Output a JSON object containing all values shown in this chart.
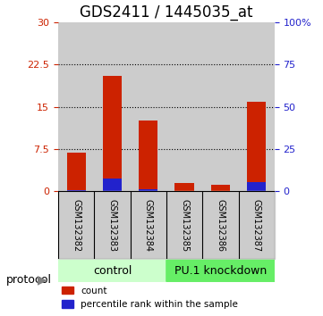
{
  "title": "GDS2411 / 1445035_at",
  "samples": [
    "GSM132382",
    "GSM132383",
    "GSM132384",
    "GSM132385",
    "GSM132386",
    "GSM132387"
  ],
  "count_values": [
    6.8,
    20.5,
    12.5,
    1.4,
    1.1,
    15.8
  ],
  "percentile_values": [
    0.5,
    7.5,
    1.2,
    0.3,
    0.3,
    5.5
  ],
  "groups": [
    {
      "label": "control",
      "indices": [
        0,
        1,
        2
      ],
      "color": "#aaffaa"
    },
    {
      "label": "PU.1 knockdown",
      "indices": [
        3,
        4,
        5
      ],
      "color": "#44ff44"
    }
  ],
  "ylim_left": [
    0,
    30
  ],
  "ylim_right": [
    0,
    100
  ],
  "yticks_left": [
    0,
    7.5,
    15,
    22.5,
    30
  ],
  "yticks_right": [
    0,
    25,
    50,
    75,
    100
  ],
  "yticklabels_right": [
    "0",
    "25",
    "50",
    "75",
    "100%"
  ],
  "bar_color_count": "#cc2200",
  "bar_color_percentile": "#2222cc",
  "bar_width": 0.35,
  "title_fontsize": 12,
  "protocol_label": "protocol",
  "legend_count": "count",
  "legend_percentile": "percentile rank within the sample",
  "background_color": "#ffffff",
  "bar_bg_color": "#cccccc",
  "group_colors": [
    "#ccffcc",
    "#66ee66"
  ]
}
